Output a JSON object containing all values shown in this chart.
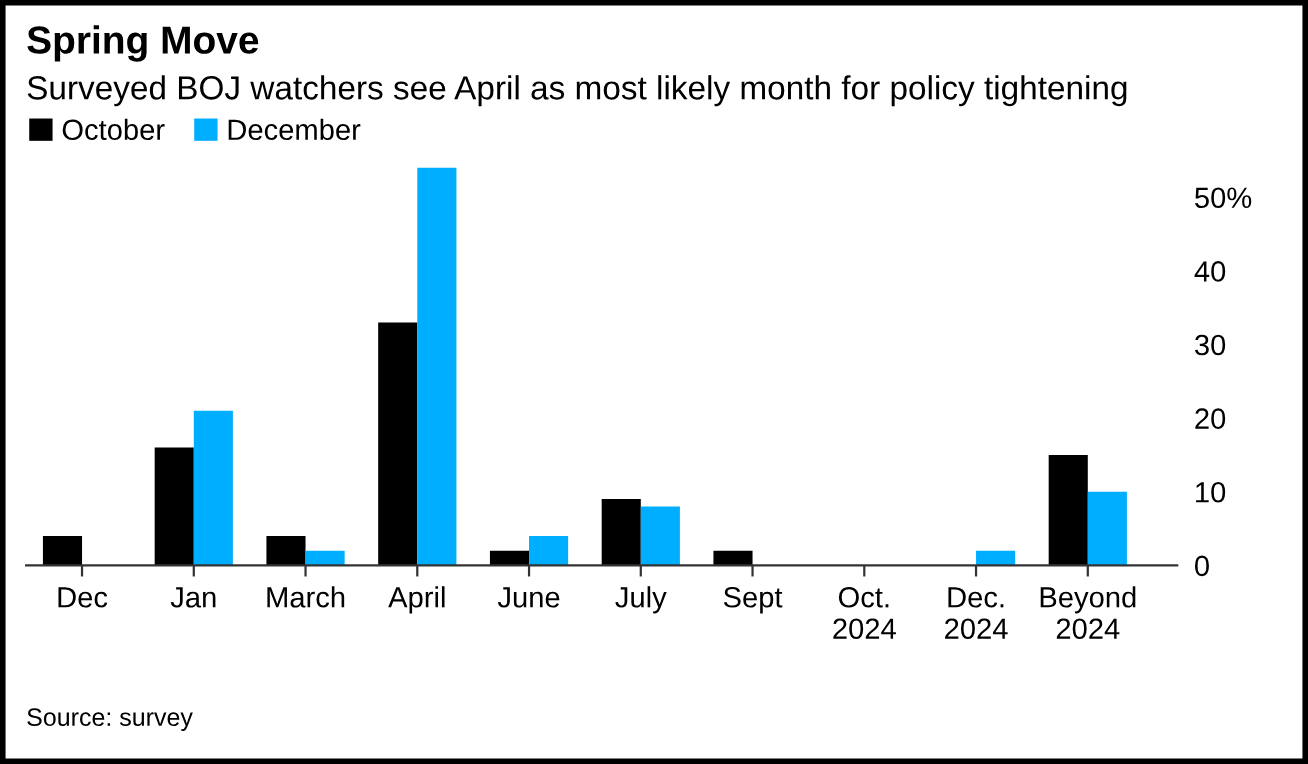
{
  "chart_data": {
    "type": "bar",
    "title": "Spring Move",
    "subtitle": "Surveyed BOJ watchers see April as most likely month for policy tightening",
    "categories": [
      "Dec",
      "Jan",
      "March",
      "April",
      "June",
      "July",
      "Sept",
      "Oct.\n2024",
      "Dec.\n2024",
      "Beyond\n2024"
    ],
    "series": [
      {
        "name": "October",
        "color": "#000000",
        "values": [
          4,
          16,
          4,
          33,
          2,
          9,
          2,
          0,
          0,
          15
        ]
      },
      {
        "name": "December",
        "color": "#00aeff",
        "values": [
          0,
          21,
          2,
          54,
          4,
          8,
          0,
          0,
          2,
          10
        ]
      }
    ],
    "ylim": [
      0,
      55
    ],
    "yticks": [
      0,
      10,
      20,
      30,
      40,
      {
        "value": 50,
        "label": "50%"
      }
    ],
    "legend": "top left",
    "annotations": [
      "Source: survey"
    ]
  }
}
